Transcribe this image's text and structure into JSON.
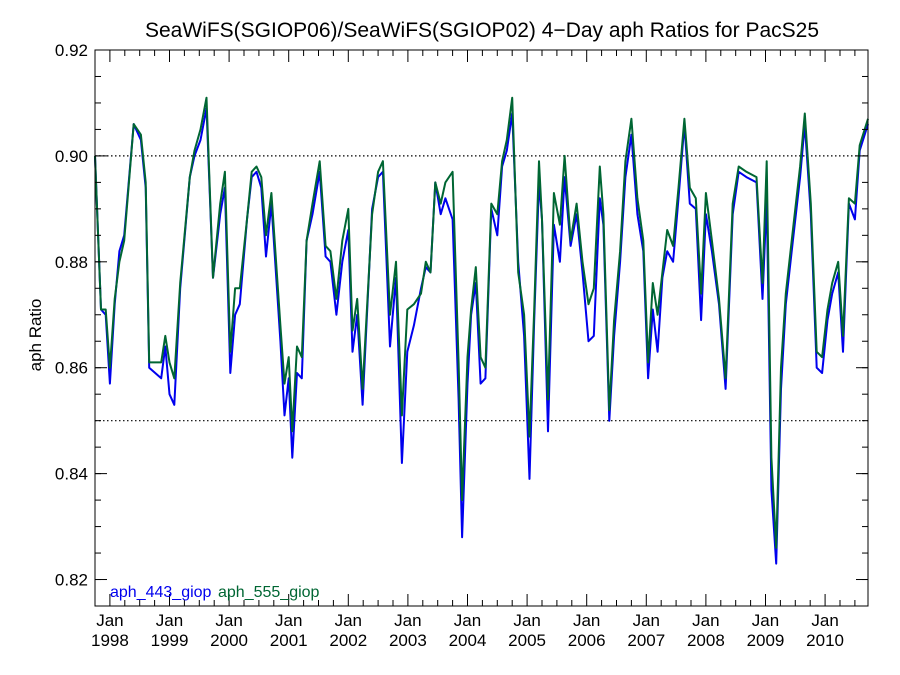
{
  "chart_data": {
    "type": "line",
    "title": "SeaWiFS(SGIOP06)/SeaWiFS(SGIOP02) 4−Day aph Ratios for PacS25",
    "xlabel": "",
    "ylabel": "aph Ratio",
    "xlim": [
      1997.75,
      2010.72
    ],
    "ylim": [
      0.815,
      0.92
    ],
    "yticks": [
      "0.82",
      "0.84",
      "0.86",
      "0.88",
      "0.90",
      "0.92"
    ],
    "xticks": [
      {
        "month": "Jan",
        "year": "1998",
        "x": 1998.0
      },
      {
        "month": "Jan",
        "year": "1999",
        "x": 1999.0
      },
      {
        "month": "Jan",
        "year": "2000",
        "x": 2000.0
      },
      {
        "month": "Jan",
        "year": "2001",
        "x": 2001.0
      },
      {
        "month": "Jan",
        "year": "2002",
        "x": 2002.0
      },
      {
        "month": "Jan",
        "year": "2003",
        "x": 2003.0
      },
      {
        "month": "Jan",
        "year": "2004",
        "x": 2004.0
      },
      {
        "month": "Jan",
        "year": "2005",
        "x": 2005.0
      },
      {
        "month": "Jan",
        "year": "2006",
        "x": 2006.0
      },
      {
        "month": "Jan",
        "year": "2007",
        "x": 2007.0
      },
      {
        "month": "Jan",
        "year": "2008",
        "x": 2008.0
      },
      {
        "month": "Jan",
        "year": "2009",
        "x": 2009.0
      },
      {
        "month": "Jan",
        "year": "2010",
        "x": 2010.0
      }
    ],
    "reference_lines": [
      0.9,
      0.85
    ],
    "grid": false,
    "legend": "bottom-left",
    "series": [
      {
        "name": "aph_443_giop",
        "color": "#0000ee",
        "points": [
          [
            1997.75,
            0.9
          ],
          [
            1997.85,
            0.871
          ],
          [
            1997.93,
            0.87
          ],
          [
            1998.0,
            0.857
          ],
          [
            1998.08,
            0.872
          ],
          [
            1998.16,
            0.882
          ],
          [
            1998.24,
            0.885
          ],
          [
            1998.4,
            0.906
          ],
          [
            1998.52,
            0.903
          ],
          [
            1998.6,
            0.894
          ],
          [
            1998.66,
            0.86
          ],
          [
            1998.86,
            0.858
          ],
          [
            1998.93,
            0.864
          ],
          [
            1999.0,
            0.855
          ],
          [
            1999.08,
            0.853
          ],
          [
            1999.18,
            0.875
          ],
          [
            1999.34,
            0.896
          ],
          [
            1999.42,
            0.9
          ],
          [
            1999.52,
            0.903
          ],
          [
            1999.62,
            0.909
          ],
          [
            1999.73,
            0.877
          ],
          [
            1999.85,
            0.889
          ],
          [
            1999.93,
            0.894
          ],
          [
            2000.02,
            0.859
          ],
          [
            2000.1,
            0.87
          ],
          [
            2000.18,
            0.872
          ],
          [
            2000.3,
            0.888
          ],
          [
            2000.38,
            0.896
          ],
          [
            2000.46,
            0.897
          ],
          [
            2000.54,
            0.894
          ],
          [
            2000.62,
            0.881
          ],
          [
            2000.71,
            0.891
          ],
          [
            2000.86,
            0.865
          ],
          [
            2000.93,
            0.851
          ],
          [
            2001.0,
            0.858
          ],
          [
            2001.06,
            0.843
          ],
          [
            2001.14,
            0.859
          ],
          [
            2001.22,
            0.858
          ],
          [
            2001.3,
            0.884
          ],
          [
            2001.4,
            0.889
          ],
          [
            2001.52,
            0.897
          ],
          [
            2001.62,
            0.881
          ],
          [
            2001.7,
            0.88
          ],
          [
            2001.8,
            0.87
          ],
          [
            2001.9,
            0.88
          ],
          [
            2002.0,
            0.886
          ],
          [
            2002.07,
            0.863
          ],
          [
            2002.15,
            0.87
          ],
          [
            2002.24,
            0.853
          ],
          [
            2002.4,
            0.89
          ],
          [
            2002.5,
            0.896
          ],
          [
            2002.58,
            0.897
          ],
          [
            2002.7,
            0.864
          ],
          [
            2002.8,
            0.877
          ],
          [
            2002.9,
            0.842
          ],
          [
            2002.99,
            0.863
          ],
          [
            2003.1,
            0.868
          ],
          [
            2003.22,
            0.875
          ],
          [
            2003.3,
            0.879
          ],
          [
            2003.38,
            0.878
          ],
          [
            2003.46,
            0.895
          ],
          [
            2003.55,
            0.889
          ],
          [
            2003.63,
            0.892
          ],
          [
            2003.75,
            0.888
          ],
          [
            2003.85,
            0.854
          ],
          [
            2003.91,
            0.828
          ],
          [
            2004.0,
            0.857
          ],
          [
            2004.06,
            0.87
          ],
          [
            2004.14,
            0.876
          ],
          [
            2004.22,
            0.857
          ],
          [
            2004.3,
            0.858
          ],
          [
            2004.4,
            0.89
          ],
          [
            2004.5,
            0.885
          ],
          [
            2004.58,
            0.898
          ],
          [
            2004.66,
            0.901
          ],
          [
            2004.75,
            0.908
          ],
          [
            2004.85,
            0.88
          ],
          [
            2004.95,
            0.866
          ],
          [
            2005.04,
            0.839
          ],
          [
            2005.12,
            0.869
          ],
          [
            2005.2,
            0.895
          ],
          [
            2005.25,
            0.888
          ],
          [
            2005.35,
            0.848
          ],
          [
            2005.45,
            0.887
          ],
          [
            2005.55,
            0.88
          ],
          [
            2005.63,
            0.896
          ],
          [
            2005.73,
            0.883
          ],
          [
            2005.83,
            0.889
          ],
          [
            2005.93,
            0.878
          ],
          [
            2006.03,
            0.865
          ],
          [
            2006.12,
            0.866
          ],
          [
            2006.22,
            0.892
          ],
          [
            2006.28,
            0.887
          ],
          [
            2006.38,
            0.85
          ],
          [
            2006.46,
            0.866
          ],
          [
            2006.56,
            0.88
          ],
          [
            2006.65,
            0.896
          ],
          [
            2006.75,
            0.904
          ],
          [
            2006.85,
            0.889
          ],
          [
            2006.95,
            0.882
          ],
          [
            2007.03,
            0.858
          ],
          [
            2007.11,
            0.871
          ],
          [
            2007.19,
            0.863
          ],
          [
            2007.27,
            0.877
          ],
          [
            2007.35,
            0.882
          ],
          [
            2007.45,
            0.88
          ],
          [
            2007.54,
            0.892
          ],
          [
            2007.64,
            0.906
          ],
          [
            2007.73,
            0.891
          ],
          [
            2007.83,
            0.89
          ],
          [
            2007.92,
            0.869
          ],
          [
            2008.0,
            0.889
          ],
          [
            2008.1,
            0.882
          ],
          [
            2008.22,
            0.872
          ],
          [
            2008.33,
            0.856
          ],
          [
            2008.45,
            0.889
          ],
          [
            2008.55,
            0.897
          ],
          [
            2008.68,
            0.896
          ],
          [
            2008.85,
            0.895
          ],
          [
            2008.95,
            0.873
          ],
          [
            2009.02,
            0.892
          ],
          [
            2009.1,
            0.837
          ],
          [
            2009.18,
            0.823
          ],
          [
            2009.26,
            0.856
          ],
          [
            2009.34,
            0.872
          ],
          [
            2009.46,
            0.884
          ],
          [
            2009.58,
            0.896
          ],
          [
            2009.66,
            0.906
          ],
          [
            2009.76,
            0.889
          ],
          [
            2009.86,
            0.86
          ],
          [
            2009.95,
            0.859
          ],
          [
            2010.04,
            0.869
          ],
          [
            2010.12,
            0.874
          ],
          [
            2010.22,
            0.878
          ],
          [
            2010.3,
            0.863
          ],
          [
            2010.4,
            0.891
          ],
          [
            2010.5,
            0.888
          ],
          [
            2010.58,
            0.901
          ],
          [
            2010.72,
            0.906
          ]
        ]
      },
      {
        "name": "aph_555_giop",
        "color": "#006633",
        "points": [
          [
            1997.75,
            0.9
          ],
          [
            1997.85,
            0.871
          ],
          [
            1997.93,
            0.871
          ],
          [
            1998.0,
            0.86
          ],
          [
            1998.08,
            0.873
          ],
          [
            1998.16,
            0.88
          ],
          [
            1998.24,
            0.884
          ],
          [
            1998.4,
            0.906
          ],
          [
            1998.52,
            0.904
          ],
          [
            1998.6,
            0.895
          ],
          [
            1998.66,
            0.861
          ],
          [
            1998.86,
            0.861
          ],
          [
            1998.93,
            0.866
          ],
          [
            1999.0,
            0.861
          ],
          [
            1999.08,
            0.858
          ],
          [
            1999.18,
            0.876
          ],
          [
            1999.34,
            0.896
          ],
          [
            1999.42,
            0.901
          ],
          [
            1999.52,
            0.905
          ],
          [
            1999.62,
            0.911
          ],
          [
            1999.73,
            0.877
          ],
          [
            1999.85,
            0.891
          ],
          [
            1999.93,
            0.897
          ],
          [
            2000.02,
            0.863
          ],
          [
            2000.1,
            0.875
          ],
          [
            2000.18,
            0.875
          ],
          [
            2000.3,
            0.888
          ],
          [
            2000.38,
            0.897
          ],
          [
            2000.46,
            0.898
          ],
          [
            2000.54,
            0.896
          ],
          [
            2000.62,
            0.885
          ],
          [
            2000.71,
            0.893
          ],
          [
            2000.86,
            0.868
          ],
          [
            2000.93,
            0.857
          ],
          [
            2001.0,
            0.862
          ],
          [
            2001.06,
            0.848
          ],
          [
            2001.14,
            0.864
          ],
          [
            2001.22,
            0.862
          ],
          [
            2001.3,
            0.884
          ],
          [
            2001.4,
            0.891
          ],
          [
            2001.52,
            0.899
          ],
          [
            2001.62,
            0.883
          ],
          [
            2001.7,
            0.882
          ],
          [
            2001.8,
            0.873
          ],
          [
            2001.9,
            0.884
          ],
          [
            2002.0,
            0.89
          ],
          [
            2002.07,
            0.867
          ],
          [
            2002.15,
            0.873
          ],
          [
            2002.24,
            0.856
          ],
          [
            2002.4,
            0.889
          ],
          [
            2002.5,
            0.897
          ],
          [
            2002.58,
            0.899
          ],
          [
            2002.7,
            0.87
          ],
          [
            2002.8,
            0.88
          ],
          [
            2002.9,
            0.851
          ],
          [
            2002.99,
            0.871
          ],
          [
            2003.1,
            0.872
          ],
          [
            2003.22,
            0.874
          ],
          [
            2003.3,
            0.88
          ],
          [
            2003.38,
            0.878
          ],
          [
            2003.46,
            0.895
          ],
          [
            2003.55,
            0.891
          ],
          [
            2003.63,
            0.895
          ],
          [
            2003.75,
            0.897
          ],
          [
            2003.85,
            0.861
          ],
          [
            2003.91,
            0.835
          ],
          [
            2004.0,
            0.862
          ],
          [
            2004.06,
            0.871
          ],
          [
            2004.14,
            0.879
          ],
          [
            2004.22,
            0.862
          ],
          [
            2004.3,
            0.86
          ],
          [
            2004.4,
            0.891
          ],
          [
            2004.5,
            0.889
          ],
          [
            2004.58,
            0.899
          ],
          [
            2004.66,
            0.903
          ],
          [
            2004.75,
            0.911
          ],
          [
            2004.85,
            0.878
          ],
          [
            2004.95,
            0.87
          ],
          [
            2005.04,
            0.847
          ],
          [
            2005.12,
            0.871
          ],
          [
            2005.2,
            0.899
          ],
          [
            2005.25,
            0.888
          ],
          [
            2005.35,
            0.854
          ],
          [
            2005.45,
            0.893
          ],
          [
            2005.55,
            0.887
          ],
          [
            2005.63,
            0.9
          ],
          [
            2005.73,
            0.884
          ],
          [
            2005.83,
            0.891
          ],
          [
            2005.93,
            0.88
          ],
          [
            2006.03,
            0.872
          ],
          [
            2006.12,
            0.875
          ],
          [
            2006.22,
            0.898
          ],
          [
            2006.28,
            0.889
          ],
          [
            2006.38,
            0.852
          ],
          [
            2006.46,
            0.869
          ],
          [
            2006.56,
            0.882
          ],
          [
            2006.65,
            0.899
          ],
          [
            2006.75,
            0.907
          ],
          [
            2006.85,
            0.892
          ],
          [
            2006.95,
            0.884
          ],
          [
            2007.03,
            0.861
          ],
          [
            2007.11,
            0.876
          ],
          [
            2007.19,
            0.87
          ],
          [
            2007.27,
            0.878
          ],
          [
            2007.35,
            0.886
          ],
          [
            2007.45,
            0.883
          ],
          [
            2007.54,
            0.894
          ],
          [
            2007.64,
            0.907
          ],
          [
            2007.73,
            0.894
          ],
          [
            2007.83,
            0.892
          ],
          [
            2007.92,
            0.874
          ],
          [
            2008.0,
            0.893
          ],
          [
            2008.1,
            0.884
          ],
          [
            2008.22,
            0.873
          ],
          [
            2008.33,
            0.858
          ],
          [
            2008.45,
            0.891
          ],
          [
            2008.55,
            0.898
          ],
          [
            2008.68,
            0.897
          ],
          [
            2008.85,
            0.896
          ],
          [
            2008.95,
            0.876
          ],
          [
            2009.02,
            0.899
          ],
          [
            2009.1,
            0.843
          ],
          [
            2009.18,
            0.826
          ],
          [
            2009.26,
            0.86
          ],
          [
            2009.34,
            0.874
          ],
          [
            2009.46,
            0.886
          ],
          [
            2009.58,
            0.898
          ],
          [
            2009.66,
            0.908
          ],
          [
            2009.76,
            0.891
          ],
          [
            2009.86,
            0.863
          ],
          [
            2009.95,
            0.862
          ],
          [
            2010.04,
            0.871
          ],
          [
            2010.12,
            0.876
          ],
          [
            2010.22,
            0.88
          ],
          [
            2010.3,
            0.866
          ],
          [
            2010.4,
            0.892
          ],
          [
            2010.5,
            0.891
          ],
          [
            2010.58,
            0.902
          ],
          [
            2010.72,
            0.907
          ]
        ]
      }
    ]
  }
}
